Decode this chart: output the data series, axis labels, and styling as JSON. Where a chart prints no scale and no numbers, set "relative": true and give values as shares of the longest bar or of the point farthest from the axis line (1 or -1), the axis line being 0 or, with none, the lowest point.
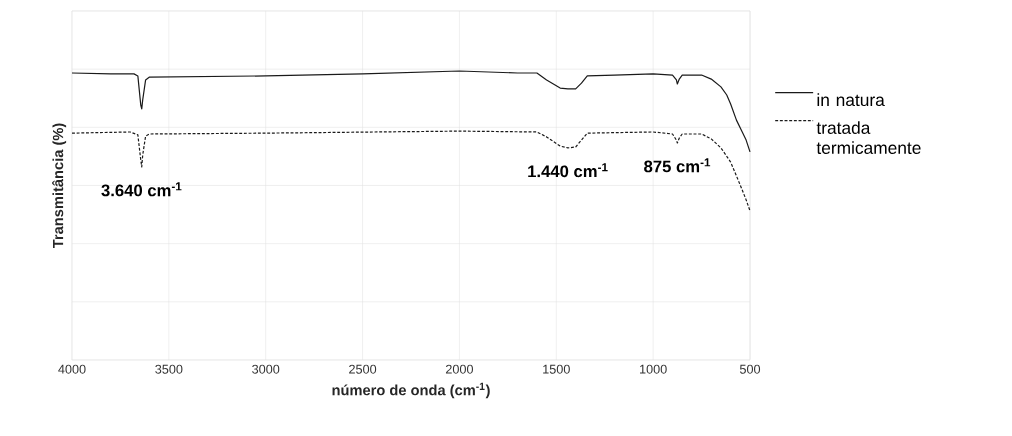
{
  "chart_data": {
    "type": "line",
    "relative": true,
    "xlabel": "número de onda (cm$^{-1}$)",
    "ylabel": "Transmitância (%)",
    "xlim": [
      4000,
      500
    ],
    "xticks": [
      4000,
      3500,
      3000,
      2500,
      2000,
      1500,
      1000,
      500
    ],
    "grid": true,
    "legend": "right",
    "tick_labels": "x",
    "marker": "none",
    "series": [
      {
        "name": "in natura",
        "color": "#1a1a1a",
        "line_style": "solid",
        "x": [
          4000,
          3800,
          3680,
          3660,
          3645,
          3640,
          3635,
          3620,
          3600,
          3000,
          2500,
          2000,
          1700,
          1600,
          1550,
          1480,
          1440,
          1400,
          1370,
          1340,
          1200,
          1000,
          900,
          880,
          875,
          865,
          850,
          750,
          700,
          650,
          620,
          600,
          570,
          540,
          520,
          500
        ],
        "values": [
          0.993,
          0.99,
          0.99,
          0.983,
          0.882,
          0.869,
          0.9,
          0.969,
          0.979,
          0.983,
          0.99,
          1.0,
          0.993,
          0.993,
          0.969,
          0.941,
          0.938,
          0.938,
          0.958,
          0.983,
          0.986,
          0.99,
          0.986,
          0.969,
          0.955,
          0.972,
          0.986,
          0.986,
          0.972,
          0.945,
          0.917,
          0.886,
          0.83,
          0.789,
          0.761,
          0.72
        ]
      },
      {
        "name": "tratada termicamente",
        "color": "#1a1a1a",
        "line_style": "dashed",
        "x": [
          4000,
          3700,
          3660,
          3645,
          3640,
          3635,
          3620,
          3600,
          3000,
          2000,
          1600,
          1550,
          1480,
          1440,
          1400,
          1370,
          1340,
          1000,
          900,
          880,
          875,
          865,
          850,
          750,
          700,
          650,
          600,
          570,
          540,
          520,
          500
        ],
        "values": [
          0.785,
          0.789,
          0.779,
          0.692,
          0.668,
          0.709,
          0.775,
          0.782,
          0.785,
          0.792,
          0.789,
          0.772,
          0.74,
          0.734,
          0.737,
          0.761,
          0.785,
          0.789,
          0.782,
          0.761,
          0.751,
          0.768,
          0.782,
          0.782,
          0.765,
          0.734,
          0.685,
          0.637,
          0.588,
          0.554,
          0.516
        ]
      }
    ],
    "annotations": [
      {
        "text": "3.640 cm$^{-1}$",
        "x": 3640,
        "y": 0.668
      },
      {
        "text": "1.440 cm$^{-1}$",
        "x": 1440,
        "y": 0.734
      },
      {
        "text": "875 cm$^{-1}$",
        "x": 875,
        "y": 0.751
      }
    ]
  }
}
